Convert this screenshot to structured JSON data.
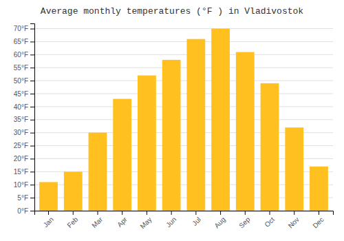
{
  "chart_data": {
    "type": "bar",
    "title": "Average monthly temperatures (°F ) in Vladivostok",
    "categories": [
      "Jan",
      "Feb",
      "Mar",
      "Apr",
      "May",
      "Jun",
      "Jul",
      "Aug",
      "Sep",
      "Oct",
      "Nov",
      "Dec"
    ],
    "values": [
      11,
      15,
      30,
      43,
      52,
      58,
      66,
      70,
      61,
      49,
      32,
      17
    ],
    "color": "#FFC020",
    "ylim": [
      0,
      72
    ],
    "yticks": [
      {
        "value": 0,
        "label": "0°F"
      },
      {
        "value": 5,
        "label": "5°F"
      },
      {
        "value": 10,
        "label": "10°F"
      },
      {
        "value": 15,
        "label": "15°F"
      },
      {
        "value": 20,
        "label": "20°F"
      },
      {
        "value": 25,
        "label": "25°F"
      },
      {
        "value": 30,
        "label": "30°F"
      },
      {
        "value": 35,
        "label": "35°F"
      },
      {
        "value": 40,
        "label": "40°F"
      },
      {
        "value": 45,
        "label": "45°F"
      },
      {
        "value": 50,
        "label": "50°F"
      },
      {
        "value": 55,
        "label": "55°F"
      },
      {
        "value": 60,
        "label": "60°F"
      },
      {
        "value": 65,
        "label": "65°F"
      },
      {
        "value": 70,
        "label": "70°F"
      }
    ],
    "grid": true
  }
}
